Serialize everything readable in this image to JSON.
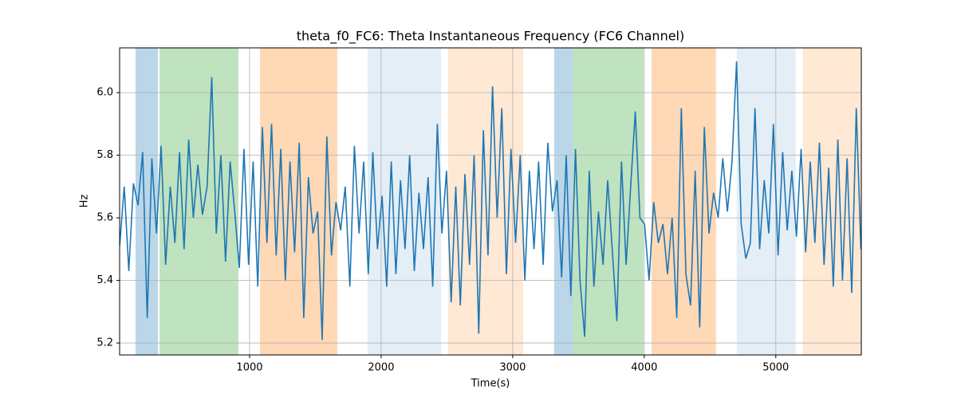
{
  "chart_data": {
    "type": "line",
    "title": "theta_f0_FC6: Theta Instantaneous Frequency (FC6 Channel)",
    "xlabel": "Time(s)",
    "ylabel": "Hz",
    "xlim": [
      12,
      5650
    ],
    "ylim": [
      5.162,
      6.143
    ],
    "xticks": [
      1000,
      2000,
      3000,
      4000,
      5000
    ],
    "yticks": [
      5.2,
      5.4,
      5.6,
      5.8,
      {
        "value": 6,
        "label": "6.0"
      }
    ],
    "grid": true,
    "spans": [
      {
        "start": 133,
        "end": 303,
        "color": "#1f77b4",
        "alpha": 0.3
      },
      {
        "start": 315,
        "end": 915,
        "color": "#2ca02c",
        "alpha": 0.3
      },
      {
        "start": 1079,
        "end": 1667,
        "color": "#ff7f0e",
        "alpha": 0.3
      },
      {
        "start": 1897,
        "end": 2455,
        "color": "#1f77b4",
        "alpha": 0.12
      },
      {
        "start": 2509,
        "end": 3079,
        "color": "#ff7f0e",
        "alpha": 0.18
      },
      {
        "start": 3315,
        "end": 3455,
        "color": "#1f77b4",
        "alpha": 0.3
      },
      {
        "start": 3455,
        "end": 3994,
        "color": "#2ca02c",
        "alpha": 0.3
      },
      {
        "start": 4055,
        "end": 4545,
        "color": "#ff7f0e",
        "alpha": 0.3
      },
      {
        "start": 4703,
        "end": 5152,
        "color": "#1f77b4",
        "alpha": 0.12
      },
      {
        "start": 5206,
        "end": 5650,
        "color": "#ff7f0e",
        "alpha": 0.18
      }
    ],
    "x": [
      12,
      47,
      82,
      117,
      152,
      187,
      222,
      257,
      292,
      327,
      362,
      397,
      432,
      467,
      502,
      537,
      572,
      607,
      642,
      677,
      712,
      747,
      782,
      817,
      852,
      887,
      922,
      957,
      992,
      1027,
      1062,
      1097,
      1132,
      1167,
      1202,
      1237,
      1272,
      1307,
      1342,
      1377,
      1412,
      1447,
      1482,
      1517,
      1552,
      1587,
      1622,
      1657,
      1692,
      1727,
      1762,
      1797,
      1832,
      1867,
      1902,
      1937,
      1972,
      2007,
      2042,
      2077,
      2112,
      2147,
      2182,
      2217,
      2252,
      2287,
      2322,
      2357,
      2392,
      2427,
      2462,
      2497,
      2532,
      2567,
      2602,
      2637,
      2672,
      2707,
      2742,
      2777,
      2812,
      2847,
      2882,
      2917,
      2952,
      2987,
      3022,
      3057,
      3092,
      3127,
      3162,
      3197,
      3232,
      3267,
      3302,
      3337,
      3372,
      3407,
      3442,
      3477,
      3512,
      3547,
      3582,
      3617,
      3652,
      3687,
      3722,
      3757,
      3792,
      3827,
      3862,
      3897,
      3932,
      3967,
      4002,
      4037,
      4072,
      4107,
      4142,
      4177,
      4212,
      4247,
      4282,
      4317,
      4352,
      4387,
      4422,
      4457,
      4492,
      4527,
      4562,
      4597,
      4632,
      4667,
      4702,
      4737,
      4772,
      4807,
      4842,
      4877,
      4912,
      4947,
      4982,
      5017,
      5052,
      5087,
      5122,
      5157,
      5192,
      5227,
      5262,
      5297,
      5332,
      5367,
      5402,
      5437,
      5472,
      5507,
      5542,
      5577,
      5612,
      5647
    ],
    "series": [
      {
        "color": "#1f77b4",
        "values": [
          5.51,
          5.7,
          5.43,
          5.71,
          5.64,
          5.81,
          5.28,
          5.79,
          5.55,
          5.83,
          5.45,
          5.7,
          5.52,
          5.81,
          5.5,
          5.85,
          5.6,
          5.77,
          5.61,
          5.7,
          6.05,
          5.55,
          5.8,
          5.46,
          5.78,
          5.62,
          5.44,
          5.82,
          5.45,
          5.78,
          5.38,
          5.89,
          5.52,
          5.9,
          5.48,
          5.82,
          5.4,
          5.78,
          5.49,
          5.84,
          5.28,
          5.73,
          5.55,
          5.62,
          5.21,
          5.86,
          5.48,
          5.65,
          5.56,
          5.7,
          5.38,
          5.83,
          5.55,
          5.78,
          5.42,
          5.81,
          5.5,
          5.67,
          5.38,
          5.78,
          5.42,
          5.72,
          5.5,
          5.8,
          5.43,
          5.68,
          5.5,
          5.73,
          5.38,
          5.9,
          5.55,
          5.75,
          5.33,
          5.7,
          5.32,
          5.74,
          5.45,
          5.8,
          5.23,
          5.88,
          5.48,
          6.02,
          5.6,
          5.95,
          5.42,
          5.82,
          5.52,
          5.8,
          5.4,
          5.75,
          5.5,
          5.78,
          5.45,
          5.84,
          5.62,
          5.72,
          5.41,
          5.8,
          5.35,
          5.82,
          5.4,
          5.22,
          5.75,
          5.38,
          5.62,
          5.45,
          5.72,
          5.5,
          5.27,
          5.78,
          5.45,
          5.7,
          5.94,
          5.6,
          5.58,
          5.4,
          5.65,
          5.52,
          5.58,
          5.42,
          5.6,
          5.28,
          5.95,
          5.42,
          5.32,
          5.75,
          5.25,
          5.89,
          5.55,
          5.68,
          5.6,
          5.79,
          5.62,
          5.78,
          6.1,
          5.58,
          5.47,
          5.52,
          5.95,
          5.5,
          5.72,
          5.55,
          5.9,
          5.48,
          5.81,
          5.56,
          5.75,
          5.54,
          5.82,
          5.49,
          5.78,
          5.52,
          5.84,
          5.45,
          5.76,
          5.38,
          5.85,
          5.4,
          5.79,
          5.36,
          5.95,
          5.5
        ]
      }
    ]
  }
}
